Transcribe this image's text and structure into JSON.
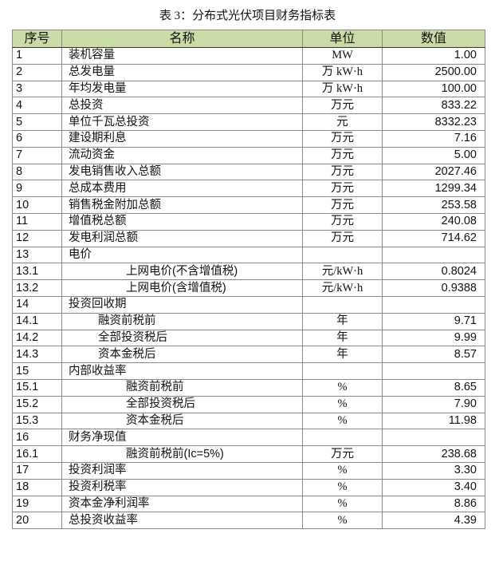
{
  "title": "表 3：分布式光伏项目财务指标表",
  "headers": {
    "no": "序号",
    "name": "名称",
    "unit": "单位",
    "value": "数值"
  },
  "rows": [
    {
      "no": "1",
      "name": "装机容量",
      "unit": "MW",
      "value": "1.00",
      "indent": 0
    },
    {
      "no": "2",
      "name": "总发电量",
      "unit": "万 kW·h",
      "value": "2500.00",
      "indent": 0
    },
    {
      "no": "3",
      "name": "年均发电量",
      "unit": "万 kW·h",
      "value": "100.00",
      "indent": 0
    },
    {
      "no": "4",
      "name": "总投资",
      "unit": "万元",
      "value": "833.22",
      "indent": 0
    },
    {
      "no": "5",
      "name": "单位千瓦总投资",
      "unit": "元",
      "value": "8332.23",
      "indent": 0
    },
    {
      "no": "6",
      "name": "建设期利息",
      "unit": "万元",
      "value": "7.16",
      "indent": 0
    },
    {
      "no": "7",
      "name": "流动资金",
      "unit": "万元",
      "value": "5.00",
      "indent": 0
    },
    {
      "no": "8",
      "name": "发电销售收入总额",
      "unit": "万元",
      "value": "2027.46",
      "indent": 0
    },
    {
      "no": "9",
      "name": "总成本费用",
      "unit": "万元",
      "value": "1299.34",
      "indent": 0
    },
    {
      "no": "10",
      "name": "销售税金附加总额",
      "unit": "万元",
      "value": "253.58",
      "indent": 0
    },
    {
      "no": "11",
      "name": "增值税总额",
      "unit": "万元",
      "value": "240.08",
      "indent": 0
    },
    {
      "no": "12",
      "name": "发电利润总额",
      "unit": "万元",
      "value": "714.62",
      "indent": 0
    },
    {
      "no": "13",
      "name": "电价",
      "unit": "",
      "value": "",
      "indent": 0
    },
    {
      "no": "13.1",
      "name": "上网电价(不含增值税)",
      "unit": "元/kW·h",
      "value": "0.8024",
      "indent": 2
    },
    {
      "no": "13.2",
      "name": "上网电价(含增值税)",
      "unit": "元/kW·h",
      "value": "0.9388",
      "indent": 2
    },
    {
      "no": "14",
      "name": "投资回收期",
      "unit": "",
      "value": "",
      "indent": 0
    },
    {
      "no": "14.1",
      "name": "融资前税前",
      "unit": "年",
      "value": "9.71",
      "indent": 1
    },
    {
      "no": "14.2",
      "name": "全部投资税后",
      "unit": "年",
      "value": "9.99",
      "indent": 1
    },
    {
      "no": "14.3",
      "name": "资本金税后",
      "unit": "年",
      "value": "8.57",
      "indent": 1
    },
    {
      "no": "15",
      "name": "内部收益率",
      "unit": "",
      "value": "",
      "indent": 0
    },
    {
      "no": "15.1",
      "name": "融资前税前",
      "unit": "%",
      "value": "8.65",
      "indent": 2
    },
    {
      "no": "15.2",
      "name": "全部投资税后",
      "unit": "%",
      "value": "7.90",
      "indent": 2
    },
    {
      "no": "15.3",
      "name": "资本金税后",
      "unit": "%",
      "value": "11.98",
      "indent": 2
    },
    {
      "no": "16",
      "name": "财务净现值",
      "unit": "",
      "value": "",
      "indent": 0
    },
    {
      "no": "16.1",
      "name": "融资前税前(Ic=5%)",
      "unit": "万元",
      "value": "238.68",
      "indent": 2
    },
    {
      "no": "17",
      "name": "投资利润率",
      "unit": "%",
      "value": "3.30",
      "indent": 0
    },
    {
      "no": "18",
      "name": "投资利税率",
      "unit": "%",
      "value": "3.40",
      "indent": 0
    },
    {
      "no": "19",
      "name": "资本金净利润率",
      "unit": "%",
      "value": "8.86",
      "indent": 0
    },
    {
      "no": "20",
      "name": "总投资收益率",
      "unit": "%",
      "value": "4.39",
      "indent": 0
    }
  ],
  "colors": {
    "header_bg": "#c9dca3"
  }
}
